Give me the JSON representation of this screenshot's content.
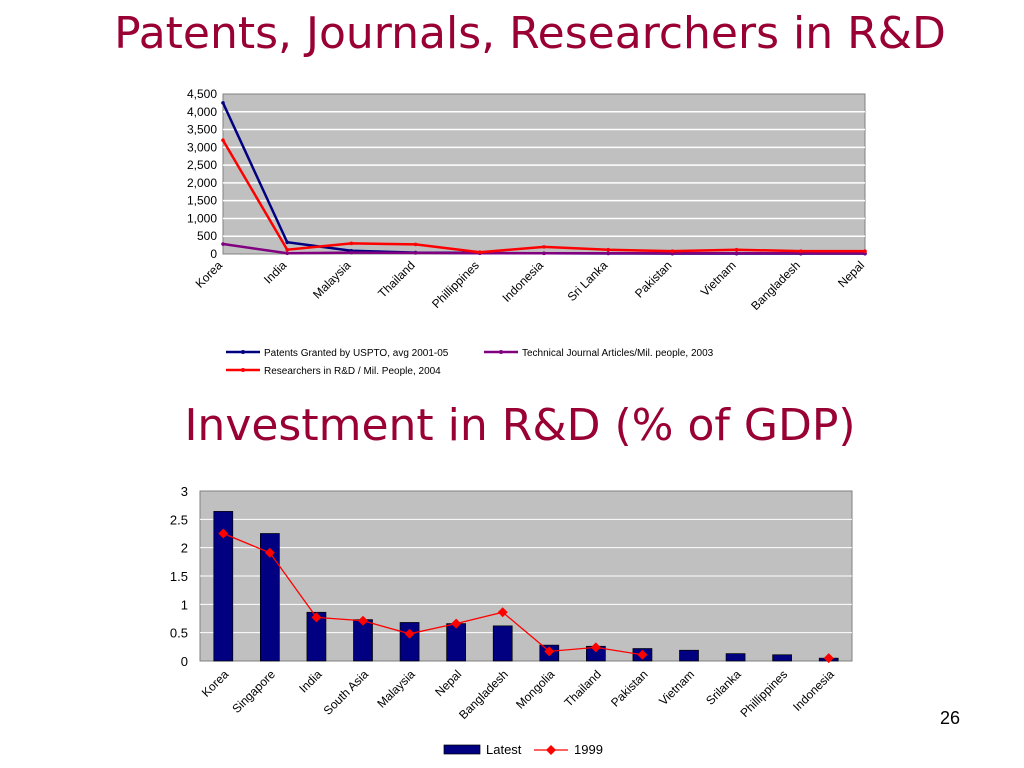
{
  "slide": {
    "title_top": "Patents, Journals, Researchers in R&D",
    "title_bottom": "Investment in R&D (% of GDP)",
    "page_number": "26"
  },
  "chart_data": [
    {
      "type": "line",
      "categories": [
        "Korea",
        "India",
        "Malaysia",
        "Thailand",
        "Phillippines",
        "Indonesia",
        "Sri Lanka",
        "Pakistan",
        "Vietnam",
        "Bangladesh",
        "Nepal"
      ],
      "ylim": [
        0,
        4500
      ],
      "yticks": [
        "0",
        "500",
        "1,000",
        "1,500",
        "2,000",
        "2,500",
        "3,000",
        "3,500",
        "4,000",
        "4,500"
      ],
      "grid": true,
      "legend_position": "bottom",
      "series": [
        {
          "name": "Patents Granted by USPTO, avg 2001-05",
          "color": "#000080",
          "values": [
            4250,
            330,
            90,
            40,
            30,
            20,
            15,
            10,
            10,
            10,
            10
          ]
        },
        {
          "name": "Technical Journal Articles/Mil. people, 2003",
          "color": "#800080",
          "values": [
            280,
            20,
            40,
            30,
            20,
            20,
            20,
            20,
            20,
            20,
            20
          ]
        },
        {
          "name": "Researchers in R&D / Mil. People, 2004",
          "color": "#ff0000",
          "values": [
            3200,
            120,
            300,
            270,
            50,
            200,
            120,
            80,
            120,
            80,
            80
          ]
        }
      ]
    },
    {
      "type": "bar",
      "categories": [
        "Korea",
        "Singapore",
        "India",
        "South Asia",
        "Malaysia",
        "Nepal",
        "Bangladesh",
        "Mongolia",
        "Thailand",
        "Pakistan",
        "Vietnam",
        "Srilanka",
        "Phillippines",
        "Indonesia"
      ],
      "ylim": [
        0,
        3
      ],
      "yticks": [
        "0",
        "0.5",
        "1",
        "1.5",
        "2",
        "2.5",
        "3"
      ],
      "grid": true,
      "legend_position": "bottom",
      "series": [
        {
          "name": "Latest",
          "kind": "bar",
          "color": "#000080",
          "values": [
            2.64,
            2.25,
            0.86,
            0.73,
            0.68,
            0.66,
            0.62,
            0.28,
            0.26,
            0.22,
            0.19,
            0.13,
            0.11,
            0.05
          ]
        },
        {
          "name": "1999",
          "kind": "line",
          "color": "#ff0000",
          "values": [
            2.25,
            1.91,
            0.77,
            0.71,
            0.48,
            0.66,
            0.86,
            0.17,
            0.24,
            0.11,
            null,
            null,
            null,
            0.05
          ]
        }
      ]
    }
  ]
}
